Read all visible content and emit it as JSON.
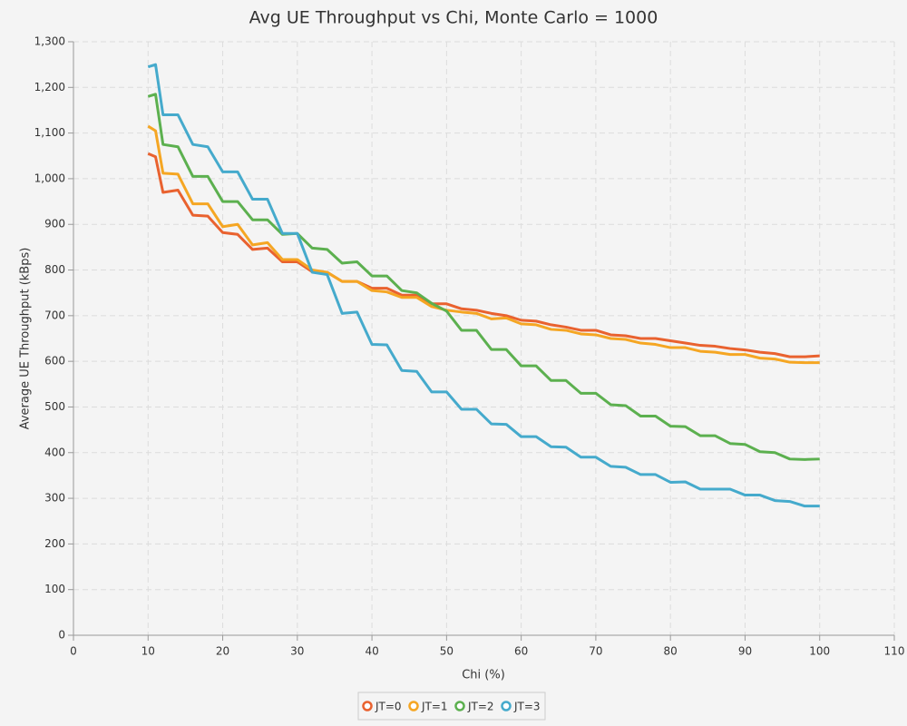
{
  "chart_data": {
    "type": "line",
    "title": "Avg UE Throughput vs Chi, Monte Carlo = 1000",
    "x_label": "Chi (%)",
    "y_label": "Average UE Throughput (kBps)",
    "x": [
      10,
      11,
      12,
      14,
      16,
      18,
      20,
      22,
      24,
      26,
      28,
      30,
      32,
      34,
      36,
      38,
      40,
      42,
      44,
      46,
      48,
      50,
      52,
      54,
      56,
      58,
      60,
      62,
      64,
      66,
      68,
      70,
      72,
      74,
      76,
      78,
      80,
      82,
      84,
      86,
      88,
      90,
      92,
      94,
      96,
      98,
      100
    ],
    "series": [
      {
        "name": "JT=0",
        "color": "#e9622f",
        "values": [
          1055,
          1048,
          970,
          975,
          920,
          918,
          882,
          878,
          845,
          848,
          818,
          818,
          796,
          795,
          775,
          775,
          760,
          760,
          745,
          745,
          726,
          726,
          715,
          712,
          705,
          700,
          690,
          688,
          680,
          675,
          668,
          668,
          658,
          656,
          650,
          650,
          645,
          640,
          635,
          633,
          628,
          625,
          620,
          617,
          610,
          610,
          612
        ]
      },
      {
        "name": "JT=1",
        "color": "#f5a623",
        "values": [
          1115,
          1105,
          1012,
          1010,
          945,
          945,
          895,
          900,
          855,
          860,
          823,
          823,
          800,
          795,
          775,
          775,
          755,
          752,
          740,
          740,
          720,
          712,
          708,
          705,
          693,
          695,
          682,
          680,
          670,
          668,
          660,
          658,
          650,
          648,
          640,
          637,
          630,
          630,
          622,
          620,
          615,
          615,
          607,
          605,
          598,
          597,
          597
        ]
      },
      {
        "name": "JT=2",
        "color": "#5cb04f",
        "values": [
          1180,
          1185,
          1075,
          1070,
          1005,
          1005,
          950,
          950,
          910,
          910,
          878,
          880,
          848,
          845,
          815,
          818,
          787,
          787,
          755,
          750,
          727,
          710,
          668,
          668,
          626,
          626,
          590,
          590,
          558,
          558,
          530,
          530,
          505,
          503,
          480,
          480,
          458,
          457,
          437,
          437,
          420,
          418,
          402,
          400,
          386,
          385,
          386
        ]
      },
      {
        "name": "JT=3",
        "color": "#45aacc",
        "values": [
          1245,
          1250,
          1140,
          1140,
          1075,
          1070,
          1015,
          1015,
          955,
          955,
          880,
          880,
          795,
          790,
          705,
          708,
          637,
          636,
          580,
          578,
          533,
          533,
          495,
          495,
          463,
          462,
          435,
          435,
          413,
          412,
          390,
          390,
          370,
          368,
          352,
          352,
          335,
          336,
          320,
          320,
          320,
          307,
          307,
          295,
          293,
          283,
          283
        ]
      }
    ],
    "xlim": [
      0,
      110
    ],
    "xticks": [
      0,
      10,
      20,
      30,
      40,
      50,
      60,
      70,
      80,
      90,
      100,
      110
    ],
    "ylim": [
      0,
      1300
    ],
    "yticks": [
      0,
      100,
      200,
      300,
      400,
      500,
      600,
      700,
      800,
      900,
      {
        "value": 1000,
        "label": "1,000"
      },
      {
        "value": 1100,
        "label": "1,100"
      },
      {
        "value": 1200,
        "label": "1,200"
      },
      {
        "value": 1300,
        "label": "1,300"
      }
    ],
    "grid": true,
    "legend": "bottom"
  }
}
